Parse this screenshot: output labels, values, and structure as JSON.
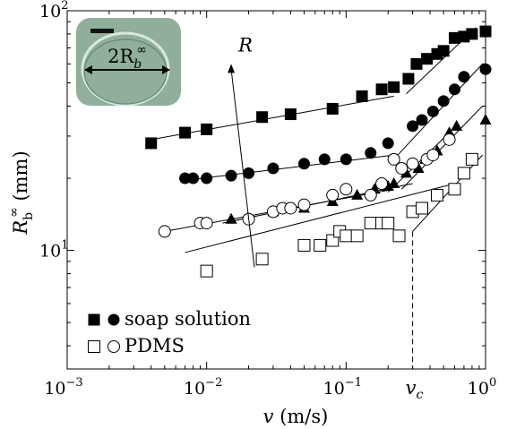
{
  "chart_data": {
    "type": "scatter",
    "x_scale": "log",
    "y_scale": "log",
    "xlim": [
      0.001,
      1
    ],
    "ylim": [
      3.2,
      100
    ],
    "xlabel": {
      "var": "v",
      "unit": " (m/s)"
    },
    "ylabel": {
      "var": "R",
      "sub": "b",
      "sup": "∞",
      "unit": " (mm)"
    },
    "x_ticks": [
      {
        "value": 0.001,
        "base": "10",
        "exp": "−3"
      },
      {
        "value": 0.01,
        "base": "10",
        "exp": "−2"
      },
      {
        "value": 0.1,
        "base": "10",
        "exp": "−1"
      },
      {
        "value": 1,
        "base": "10",
        "exp": "0"
      }
    ],
    "y_ticks": [
      {
        "value": 10,
        "base": "10",
        "exp": "1"
      },
      {
        "value": 100,
        "base": "10",
        "exp": "2"
      }
    ],
    "series": [
      {
        "marker": "square-filled",
        "color": "#000000",
        "x": [
          0.004,
          0.007,
          0.01,
          0.025,
          0.04,
          0.08,
          0.13,
          0.18,
          0.22,
          0.28,
          0.32,
          0.38,
          0.45,
          0.5,
          0.6,
          0.7,
          0.8,
          1.0
        ],
        "y": [
          28,
          31,
          32,
          36,
          37,
          39,
          44,
          47,
          48,
          52,
          60,
          63,
          66,
          68,
          77,
          78,
          80,
          82
        ]
      },
      {
        "marker": "circle-filled",
        "color": "#000000",
        "x": [
          0.007,
          0.008,
          0.01,
          0.015,
          0.02,
          0.03,
          0.05,
          0.07,
          0.1,
          0.15,
          0.2,
          0.3,
          0.35,
          0.42,
          0.5,
          0.6,
          0.7,
          1.0
        ],
        "y": [
          20,
          20,
          20,
          20.5,
          21,
          22,
          23,
          24,
          24,
          25.5,
          28,
          33,
          35,
          38,
          42,
          47,
          53,
          57
        ]
      },
      {
        "marker": "triangle-filled",
        "color": "#000000",
        "x": [
          0.015,
          0.03,
          0.05,
          0.08,
          0.12,
          0.16,
          0.2,
          0.22,
          0.27,
          0.33,
          0.37,
          0.45,
          0.55,
          0.62,
          1.0
        ],
        "y": [
          13.5,
          14.5,
          15,
          16,
          17,
          18,
          18.5,
          19,
          21,
          22,
          24,
          26,
          31,
          33,
          35
        ]
      },
      {
        "marker": "circle-open",
        "color": "#000000",
        "x": [
          0.005,
          0.009,
          0.01,
          0.02,
          0.03,
          0.035,
          0.04,
          0.05,
          0.08,
          0.1,
          0.15,
          0.18,
          0.22,
          0.25,
          0.3,
          0.38,
          0.42,
          0.55
        ],
        "y": [
          12,
          13,
          13,
          13.5,
          14.5,
          15,
          15,
          15.5,
          17,
          18,
          17,
          19,
          24,
          22,
          23,
          24,
          25,
          29
        ]
      },
      {
        "marker": "square-open",
        "color": "#000000",
        "x": [
          0.01,
          0.025,
          0.05,
          0.065,
          0.08,
          0.09,
          0.1,
          0.12,
          0.15,
          0.18,
          0.2,
          0.24,
          0.3,
          0.35,
          0.45,
          0.6,
          0.7,
          0.8
        ],
        "y": [
          8.2,
          9.2,
          10.5,
          10.5,
          11,
          12,
          11.5,
          11.5,
          13,
          13,
          13,
          11.5,
          14.5,
          15,
          17,
          18,
          21,
          24
        ]
      }
    ],
    "fit_lines": [
      {
        "from": [
          0.004,
          29
        ],
        "to": [
          0.22,
          44
        ]
      },
      {
        "from": [
          0.27,
          45
        ],
        "to": [
          0.85,
          85
        ]
      },
      {
        "from": [
          0.007,
          19.6
        ],
        "to": [
          0.22,
          25
        ]
      },
      {
        "from": [
          0.22,
          24
        ],
        "to": [
          0.95,
          60
        ]
      },
      {
        "from": [
          0.005,
          12
        ],
        "to": [
          0.22,
          18
        ]
      },
      {
        "from": [
          0.2,
          17.5
        ],
        "to": [
          0.55,
          31
        ]
      },
      {
        "from": [
          0.013,
          13
        ],
        "to": [
          0.3,
          19
        ]
      },
      {
        "from": [
          0.25,
          18
        ],
        "to": [
          0.95,
          40
        ]
      },
      {
        "from": [
          0.007,
          9.8
        ],
        "to": [
          0.6,
          19
        ]
      },
      {
        "from": [
          0.3,
          12
        ],
        "to": [
          0.95,
          25
        ]
      }
    ],
    "arrow": {
      "from": [
        0.022,
        8.5
      ],
      "to": [
        0.015,
        60
      ],
      "label": "R"
    },
    "vc_line": {
      "x": 0.3,
      "label": "v",
      "sub": "c"
    },
    "legend": [
      {
        "markers": [
          "square-filled",
          "circle-filled"
        ],
        "label": "soap solution"
      },
      {
        "markers": [
          "square-open",
          "circle-open"
        ],
        "label": "PDMS"
      }
    ],
    "inset": {
      "label": "2R",
      "sub": "b",
      "sup": "∞",
      "background": "#8faf9a"
    }
  }
}
